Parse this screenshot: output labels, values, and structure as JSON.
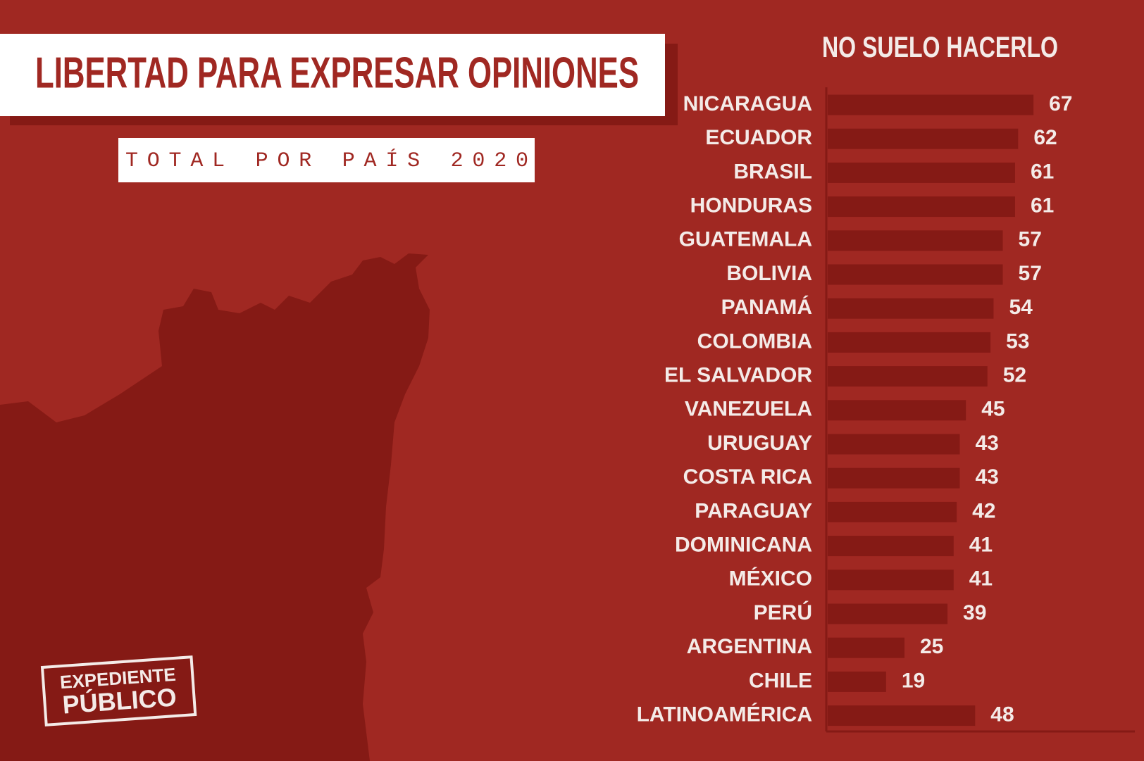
{
  "chart_data": {
    "type": "bar",
    "orientation": "horizontal",
    "title": "LIBERTAD PARA EXPRESAR OPINIONES",
    "subtitle": "TOTAL POR PAÍS 2020",
    "categories": [
      "NICARAGUA",
      "ECUADOR",
      "BRASIL",
      "HONDURAS",
      "GUATEMALA",
      "BOLIVIA",
      "PANAMÁ",
      "COLOMBIA",
      "EL SALVADOR",
      "VANEZUELA",
      "URUGUAY",
      "COSTA RICA",
      "PARAGUAY",
      "DOMINICANA",
      "MÉXICO",
      "PERÚ",
      "ARGENTINA",
      "CHILE",
      "LATINOAMÉRICA"
    ],
    "series": [
      {
        "name": "NO SUELO HACERLO",
        "color": "#851a15",
        "values": [
          67,
          62,
          61,
          61,
          57,
          57,
          54,
          53,
          52,
          45,
          43,
          43,
          42,
          41,
          41,
          39,
          25,
          19,
          48
        ]
      }
    ],
    "xlim": [
      0,
      100
    ]
  },
  "logo": {
    "line1": "EXPEDIENTE",
    "line2": "PÚBLICO"
  }
}
